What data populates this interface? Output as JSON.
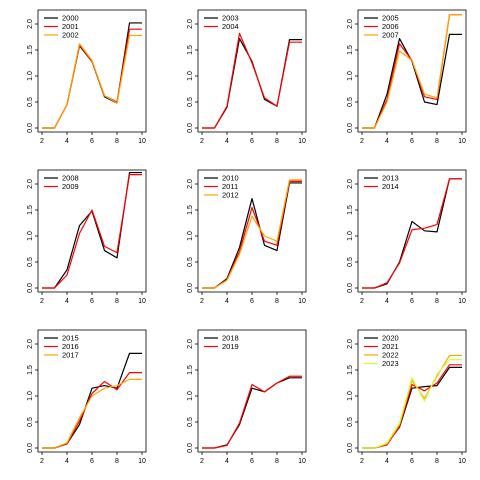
{
  "chart_data": [
    {
      "type": "line",
      "x": [
        2,
        3,
        4,
        5,
        6,
        7,
        8,
        9,
        10
      ],
      "xlim": [
        2,
        10
      ],
      "ylim": [
        0,
        2
      ],
      "xticks": [
        "2",
        "4",
        "6",
        "8",
        "10"
      ],
      "yticks": [
        "0.0",
        "0.5",
        "1.0",
        "1.5",
        "2.0"
      ],
      "legend_position": "top-left",
      "series": [
        {
          "name": "2000",
          "color": "#000000",
          "values": [
            0,
            0,
            0.45,
            1.58,
            1.28,
            0.6,
            0.48,
            2.02,
            2.02
          ]
        },
        {
          "name": "2001",
          "color": "#ff0000",
          "values": [
            0,
            0,
            0.45,
            1.6,
            1.28,
            0.62,
            0.5,
            1.9,
            1.9
          ]
        },
        {
          "name": "2002",
          "color": "#ffa500",
          "values": [
            0,
            0,
            0.45,
            1.62,
            1.3,
            0.62,
            0.48,
            1.78,
            1.78
          ]
        }
      ]
    },
    {
      "type": "line",
      "x": [
        2,
        3,
        4,
        5,
        6,
        7,
        8,
        9,
        10
      ],
      "xlim": [
        2,
        10
      ],
      "ylim": [
        0,
        2
      ],
      "xticks": [
        "2",
        "4",
        "6",
        "8",
        "10"
      ],
      "yticks": [
        "0.0",
        "0.5",
        "1.0",
        "1.5",
        "2.0"
      ],
      "legend_position": "top-left",
      "series": [
        {
          "name": "2003",
          "color": "#000000",
          "values": [
            0,
            0,
            0.4,
            1.72,
            1.28,
            0.55,
            0.42,
            1.7,
            1.7
          ]
        },
        {
          "name": "2004",
          "color": "#ff0000",
          "values": [
            0,
            0,
            0.42,
            1.82,
            1.25,
            0.58,
            0.42,
            1.65,
            1.65
          ]
        }
      ]
    },
    {
      "type": "line",
      "x": [
        2,
        3,
        4,
        5,
        6,
        7,
        8,
        9,
        10
      ],
      "xlim": [
        2,
        10
      ],
      "ylim": [
        0,
        2
      ],
      "xticks": [
        "2",
        "4",
        "6",
        "8",
        "10"
      ],
      "yticks": [
        "0.0",
        "0.5",
        "1.0",
        "1.5",
        "2.0"
      ],
      "legend_position": "top-left",
      "series": [
        {
          "name": "2005",
          "color": "#000000",
          "values": [
            0,
            0,
            0.65,
            1.72,
            1.28,
            0.5,
            0.45,
            1.8,
            1.8
          ]
        },
        {
          "name": "2006",
          "color": "#ff0000",
          "values": [
            0,
            0,
            0.55,
            1.62,
            1.3,
            0.6,
            0.55,
            2.18,
            2.18
          ]
        },
        {
          "name": "2007",
          "color": "#ffa500",
          "values": [
            0,
            0,
            0.5,
            1.48,
            1.3,
            0.65,
            0.58,
            2.18,
            2.18
          ]
        }
      ]
    },
    {
      "type": "line",
      "x": [
        2,
        3,
        4,
        5,
        6,
        7,
        8,
        9,
        10
      ],
      "xlim": [
        2,
        10
      ],
      "ylim": [
        0,
        2
      ],
      "xticks": [
        "2",
        "4",
        "6",
        "8",
        "10"
      ],
      "yticks": [
        "0.0",
        "0.5",
        "1.0",
        "1.5",
        "2.0"
      ],
      "legend_position": "top-left",
      "series": [
        {
          "name": "2008",
          "color": "#000000",
          "values": [
            0,
            0,
            0.35,
            1.2,
            1.48,
            0.72,
            0.58,
            2.22,
            2.22
          ]
        },
        {
          "name": "2009",
          "color": "#ff0000",
          "values": [
            0,
            0,
            0.25,
            1.05,
            1.5,
            0.8,
            0.68,
            2.18,
            2.18
          ]
        }
      ]
    },
    {
      "type": "line",
      "x": [
        2,
        3,
        4,
        5,
        6,
        7,
        8,
        9,
        10
      ],
      "xlim": [
        2,
        10
      ],
      "ylim": [
        0,
        2
      ],
      "xticks": [
        "2",
        "4",
        "6",
        "8",
        "10"
      ],
      "yticks": [
        "0.0",
        "0.5",
        "1.0",
        "1.5",
        "2.0"
      ],
      "legend_position": "top-left",
      "series": [
        {
          "name": "2010",
          "color": "#000000",
          "values": [
            0,
            0,
            0.18,
            0.78,
            1.72,
            0.82,
            0.72,
            2.02,
            2.02
          ]
        },
        {
          "name": "2011",
          "color": "#ff0000",
          "values": [
            0,
            0,
            0.16,
            0.7,
            1.55,
            0.9,
            0.82,
            2.05,
            2.05
          ]
        },
        {
          "name": "2012",
          "color": "#ffa500",
          "values": [
            0,
            0,
            0.15,
            0.65,
            1.38,
            1.0,
            0.9,
            2.08,
            2.08
          ]
        }
      ]
    },
    {
      "type": "line",
      "x": [
        2,
        3,
        4,
        5,
        6,
        7,
        8,
        9,
        10
      ],
      "xlim": [
        2,
        10
      ],
      "ylim": [
        0,
        2
      ],
      "xticks": [
        "2",
        "4",
        "6",
        "8",
        "10"
      ],
      "yticks": [
        "0.0",
        "0.5",
        "1.0",
        "1.5",
        "2.0"
      ],
      "legend_position": "top-left",
      "series": [
        {
          "name": "2013",
          "color": "#000000",
          "values": [
            0,
            0,
            0.08,
            0.5,
            1.28,
            1.1,
            1.08,
            2.1,
            2.1
          ]
        },
        {
          "name": "2014",
          "color": "#ff0000",
          "values": [
            0,
            0,
            0.1,
            0.48,
            1.12,
            1.15,
            1.22,
            2.1,
            2.1
          ]
        }
      ]
    },
    {
      "type": "line",
      "x": [
        2,
        3,
        4,
        5,
        6,
        7,
        8,
        9,
        10
      ],
      "xlim": [
        2,
        10
      ],
      "ylim": [
        0,
        2
      ],
      "xticks": [
        "2",
        "4",
        "6",
        "8",
        "10"
      ],
      "yticks": [
        "0.0",
        "0.5",
        "1.0",
        "1.5",
        "2.0"
      ],
      "legend_position": "top-left",
      "series": [
        {
          "name": "2015",
          "color": "#000000",
          "values": [
            0,
            0,
            0.08,
            0.45,
            1.15,
            1.2,
            1.15,
            1.82,
            1.82
          ]
        },
        {
          "name": "2016",
          "color": "#ff0000",
          "values": [
            0,
            0,
            0.08,
            0.52,
            1.05,
            1.28,
            1.12,
            1.45,
            1.45
          ]
        },
        {
          "name": "2017",
          "color": "#ffa500",
          "values": [
            0,
            0,
            0.1,
            0.58,
            1.0,
            1.15,
            1.2,
            1.32,
            1.32
          ]
        }
      ]
    },
    {
      "type": "line",
      "x": [
        2,
        3,
        4,
        5,
        6,
        7,
        8,
        9,
        10
      ],
      "xlim": [
        2,
        10
      ],
      "ylim": [
        0,
        2
      ],
      "xticks": [
        "2",
        "4",
        "6",
        "8",
        "10"
      ],
      "yticks": [
        "0.0",
        "0.5",
        "1.0",
        "1.5",
        "2.0"
      ],
      "legend_position": "top-left",
      "series": [
        {
          "name": "2018",
          "color": "#000000",
          "values": [
            0,
            0,
            0.06,
            0.45,
            1.15,
            1.08,
            1.25,
            1.35,
            1.35
          ]
        },
        {
          "name": "2019",
          "color": "#ff0000",
          "values": [
            0,
            0,
            0.05,
            0.48,
            1.22,
            1.08,
            1.25,
            1.38,
            1.38
          ]
        }
      ]
    },
    {
      "type": "line",
      "x": [
        2,
        3,
        4,
        5,
        6,
        7,
        8,
        9,
        10
      ],
      "xlim": [
        2,
        10
      ],
      "ylim": [
        0,
        2
      ],
      "xticks": [
        "2",
        "4",
        "6",
        "8",
        "10"
      ],
      "yticks": [
        "0.0",
        "0.5",
        "1.0",
        "1.5",
        "2.0"
      ],
      "legend_position": "top-left",
      "series": [
        {
          "name": "2020",
          "color": "#000000",
          "values": [
            0,
            0,
            0.08,
            0.4,
            1.15,
            1.18,
            1.2,
            1.55,
            1.55
          ]
        },
        {
          "name": "2021",
          "color": "#ff0000",
          "values": [
            0,
            0,
            0.06,
            0.42,
            1.22,
            1.1,
            1.25,
            1.6,
            1.6
          ]
        },
        {
          "name": "2022",
          "color": "#ffa500",
          "values": [
            0,
            0,
            0.08,
            0.45,
            1.3,
            0.95,
            1.38,
            1.78,
            1.78
          ]
        },
        {
          "name": "2023",
          "color": "#d0ff40",
          "values": [
            0,
            0,
            0.1,
            0.48,
            1.35,
            0.9,
            1.42,
            1.7,
            1.7
          ]
        }
      ]
    }
  ]
}
